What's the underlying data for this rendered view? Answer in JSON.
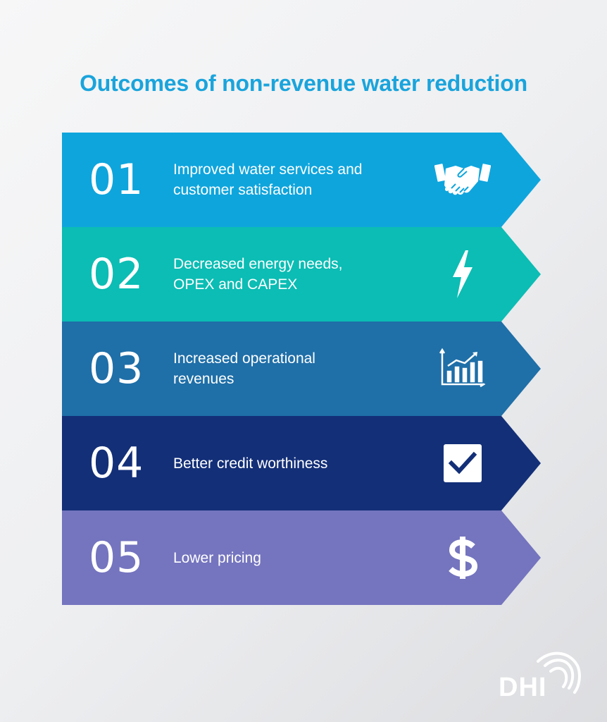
{
  "title": "Outcomes of non-revenue water reduction",
  "steps": [
    {
      "number": "01",
      "text": "Improved water services and customer satisfaction",
      "icon": "handshake-icon",
      "color": "#0ea5dd"
    },
    {
      "number": "02",
      "text": "Decreased energy needs, OPEX and CAPEX",
      "icon": "lightning-icon",
      "color": "#0bbdb4"
    },
    {
      "number": "03",
      "text": "Increased operational revenues",
      "icon": "growth-chart-icon",
      "color": "#1f6fa8"
    },
    {
      "number": "04",
      "text": "Better credit worthiness",
      "icon": "checkbox-icon",
      "color": "#132f78"
    },
    {
      "number": "05",
      "text": "Lower pricing",
      "icon": "dollar-icon",
      "color": "#7474bf"
    }
  ],
  "logo": {
    "text": "DHI"
  }
}
